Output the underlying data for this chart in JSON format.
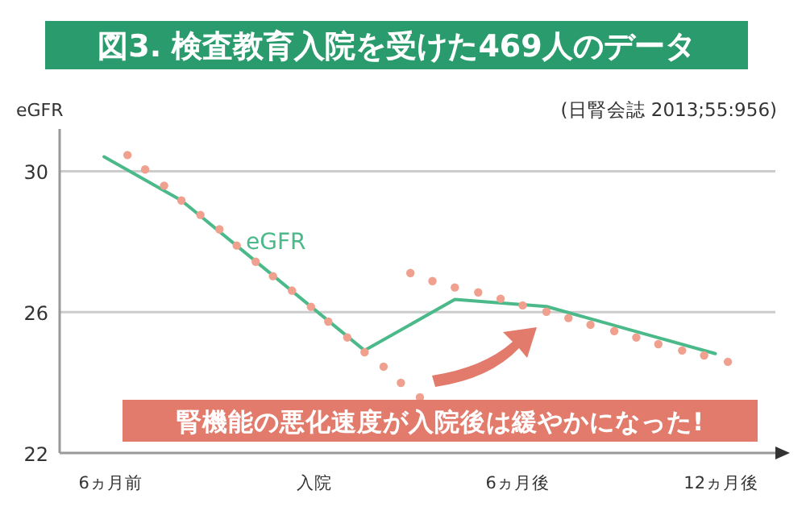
{
  "chart_data": {
    "type": "line",
    "title": "図3. 検査教育入院を受けた469人のデータ",
    "ylabel": "eGFR",
    "annotations": [
      "(日腎会誌 2013;55:956)",
      "腎機能の悪化速度が入院後は緩やかになった!"
    ],
    "xlim": [
      -7.5,
      13.6
    ],
    "xticks": [
      {
        "value": -6,
        "label": "6ヵ月前"
      },
      {
        "value": 0,
        "label": "入院"
      },
      {
        "value": 6,
        "label": "6ヵ月後"
      },
      {
        "value": 12,
        "label": "12ヵ月後"
      }
    ],
    "ylim": [
      22,
      31.2
    ],
    "yticks": [
      22,
      26,
      30
    ],
    "grid": "y",
    "series": [
      {
        "type": "scatter",
        "marker": "circle",
        "color": "#f0a08e",
        "x": [
          -5.5,
          -4.98,
          -4.42,
          -3.91,
          -3.35,
          -2.79,
          -2.28,
          -1.72,
          -1.21,
          -0.65,
          -0.09,
          0.42,
          0.98,
          1.49,
          2.05,
          2.56,
          3.12
        ],
        "values": [
          30.46,
          30.05,
          29.59,
          29.17,
          28.76,
          28.35,
          27.89,
          27.43,
          27.02,
          26.61,
          26.15,
          25.73,
          25.28,
          24.86,
          24.45,
          23.99,
          23.58
        ]
      },
      {
        "type": "scatter",
        "marker": "circle",
        "color": "#f0a08e",
        "x": [
          2.84,
          3.49,
          4.15,
          4.84,
          5.5,
          6.15,
          6.85,
          7.5,
          8.15,
          8.85,
          9.5,
          10.15,
          10.85,
          11.5,
          12.2
        ],
        "values": [
          27.11,
          26.88,
          26.7,
          26.56,
          26.38,
          26.19,
          26.01,
          25.83,
          25.64,
          25.46,
          25.28,
          25.09,
          24.91,
          24.77,
          24.59
        ]
      },
      {
        "type": "line",
        "marker": "none",
        "name": "eGFR",
        "color": "#4cb98a",
        "x": [
          -6.19,
          -3.91,
          1.49,
          4.15,
          6.85,
          11.83
        ],
        "values": [
          30.41,
          29.17,
          24.91,
          26.36,
          26.16,
          24.82
        ]
      }
    ]
  }
}
